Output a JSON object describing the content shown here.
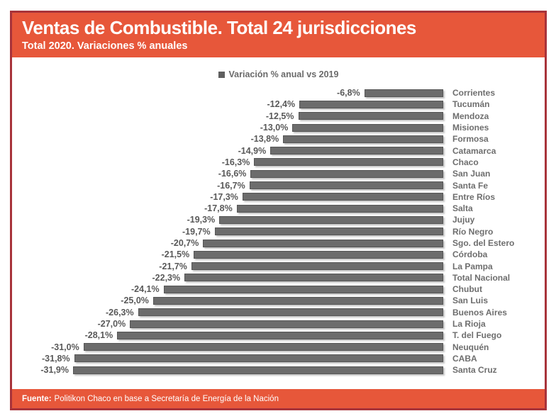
{
  "header": {
    "title": "Ventas de Combustible. Total 24 jurisdicciones",
    "subtitle": "Total 2020. Variaciones % anuales"
  },
  "legend": {
    "label": "Variación % anual vs 2019"
  },
  "footer": {
    "source_label": "Fuente:",
    "source_text": "Politikon Chaco en base a Secretaría de Energía de la Nación"
  },
  "colors": {
    "accent_orange": "#E7573A",
    "border_red": "#A8333A",
    "bar_gray": "#6C6C6C",
    "value_text": "#595959",
    "category_text": "#6E6E6E",
    "background": "#FFFFFF"
  },
  "chart_data": {
    "type": "bar",
    "orientation": "horizontal",
    "title": "Ventas de Combustible. Total 24 jurisdicciones",
    "subtitle": "Total 2020. Variaciones % anuales",
    "legend_entries": [
      "Variación % anual vs 2019"
    ],
    "legend_position": "top-center",
    "unit": "%",
    "xlim": [
      -31.9,
      0
    ],
    "grid": false,
    "value_axis_hidden": true,
    "categories": [
      "Corrientes",
      "Tucumán",
      "Mendoza",
      "Misiones",
      "Formosa",
      "Catamarca",
      "Chaco",
      "San Juan",
      "Santa Fe",
      "Entre Ríos",
      "Salta",
      "Jujuy",
      "Río Negro",
      "Sgo. del Estero",
      "Córdoba",
      "La Pampa",
      "Total Nacional",
      "Chubut",
      "San Luis",
      "Buenos Aires",
      "La Rioja",
      "T. del Fuego",
      "Neuquén",
      "CABA",
      "Santa Cruz"
    ],
    "values": [
      -6.8,
      -12.4,
      -12.5,
      -13.0,
      -13.8,
      -14.9,
      -16.3,
      -16.6,
      -16.7,
      -17.3,
      -17.8,
      -19.3,
      -19.7,
      -20.7,
      -21.5,
      -21.7,
      -22.3,
      -24.1,
      -25.0,
      -26.3,
      -27.0,
      -28.1,
      -31.0,
      -31.8,
      -31.9
    ],
    "value_labels": [
      "-6,8%",
      "-12,4%",
      "-12,5%",
      "-13,0%",
      "-13,8%",
      "-14,9%",
      "-16,3%",
      "-16,6%",
      "-16,7%",
      "-17,3%",
      "-17,8%",
      "-19,3%",
      "-19,7%",
      "-20,7%",
      "-21,5%",
      "-21,7%",
      "-22,3%",
      "-24,1%",
      "-25,0%",
      "-26,3%",
      "-27,0%",
      "-28,1%",
      "-31,0%",
      "-31,8%",
      "-31,9%"
    ],
    "max_abs": 31.9
  }
}
